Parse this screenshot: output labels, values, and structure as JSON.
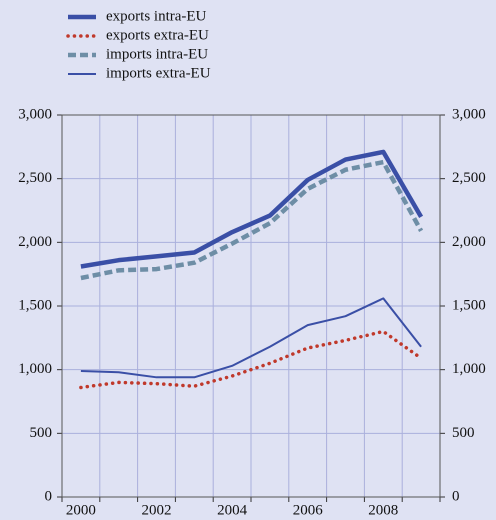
{
  "chart_data": {
    "type": "line",
    "categories": [
      "2000",
      null,
      "2002",
      null,
      "2004",
      null,
      "2006",
      null,
      "2008",
      null
    ],
    "series": [
      {
        "name": "exports intra-EU",
        "color": "#3a4fa6",
        "style": "solid",
        "width": 4.5,
        "values": [
          1810,
          1860,
          1890,
          1920,
          2080,
          2210,
          2490,
          2650,
          2710,
          2200
        ]
      },
      {
        "name": "exports extra-EU",
        "color": "#c0392b",
        "style": "dotted",
        "width": 3.5,
        "values": [
          860,
          900,
          890,
          870,
          950,
          1050,
          1170,
          1230,
          1300,
          1090
        ]
      },
      {
        "name": "imports intra-EU",
        "color": "#6e8ea6",
        "style": "dashed",
        "width": 4.5,
        "values": [
          1720,
          1780,
          1790,
          1840,
          1990,
          2150,
          2420,
          2570,
          2630,
          2090
        ]
      },
      {
        "name": "imports extra-EU",
        "color": "#3a4fa6",
        "style": "solid",
        "width": 2,
        "values": [
          990,
          980,
          940,
          940,
          1030,
          1180,
          1350,
          1420,
          1560,
          1180
        ]
      }
    ],
    "ylim": [
      0,
      3000
    ],
    "yticks": [
      0,
      500,
      {
        "value": 1000,
        "label": "1,000"
      },
      {
        "value": 1500,
        "label": "1,500"
      },
      {
        "value": 2000,
        "label": "2,000"
      },
      {
        "value": 2500,
        "label": "2,500"
      },
      {
        "value": 3000,
        "label": "3,000"
      }
    ],
    "grid": true,
    "legend": "top-left"
  }
}
